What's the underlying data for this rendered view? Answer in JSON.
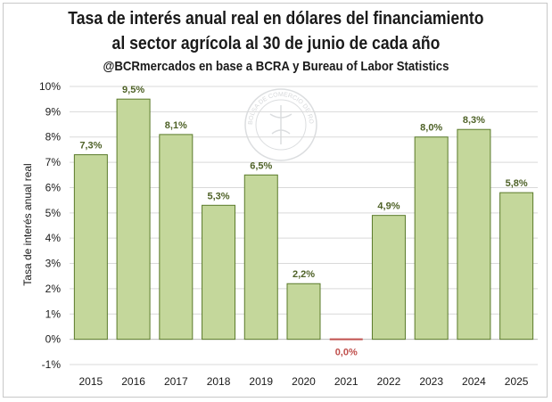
{
  "chart_data": {
    "type": "bar",
    "title": "Tasa de interés anual real en dólares del financiamiento",
    "title_line2": "al sector agrícola al 30 de junio de cada año",
    "subtitle": "@BCRmercados en base a BCRA y Bureau of Labor Statistics",
    "ylabel": "Tasa de interés anual real",
    "xlabel": "",
    "categories": [
      "2015",
      "2016",
      "2017",
      "2018",
      "2019",
      "2020",
      "2021",
      "2022",
      "2023",
      "2024",
      "2025"
    ],
    "values": [
      7.3,
      9.5,
      8.1,
      5.3,
      6.5,
      2.2,
      0.0,
      4.9,
      8.0,
      8.3,
      5.8
    ],
    "data_labels": [
      "7,3%",
      "9,5%",
      "8,1%",
      "5,3%",
      "6,5%",
      "2,2%",
      "0,0%",
      "4,9%",
      "8,0%",
      "8,3%",
      "5,8%"
    ],
    "ylim": [
      -1,
      10
    ],
    "yticks": [
      -1,
      0,
      1,
      2,
      3,
      4,
      5,
      6,
      7,
      8,
      9,
      10
    ],
    "ytick_labels": [
      "-1%",
      "0%",
      "1%",
      "2%",
      "3%",
      "4%",
      "5%",
      "6%",
      "7%",
      "8%",
      "9%",
      "10%"
    ],
    "grid": true,
    "watermark": "BOLSA DE COMERCIO DE ROSARIO",
    "colors": {
      "bar_fill": "#c4d79b",
      "bar_stroke": "#5a7a2a",
      "label_positive": "#4f6228",
      "label_zero": "#c0504d",
      "zero_bar": "#c0504d",
      "grid": "#d9d9d9"
    }
  }
}
